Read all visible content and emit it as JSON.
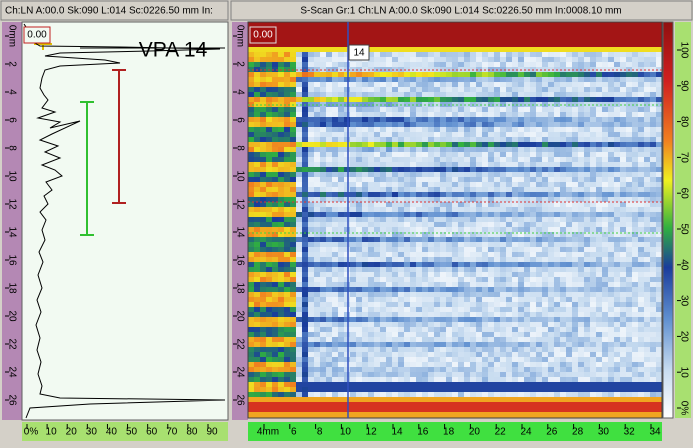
{
  "header": {
    "left": "Ch:LN A:00.0 Sk:090 L:014 Sc:0226.50 mm In:",
    "right": "S-Scan Gr:1 Ch:LN A:00.0 Sk:090 L:014 Sc:0226.50 mm In:0008.10 mm"
  },
  "ascan": {
    "gate_readout": "0.00",
    "label": "VPA 14",
    "depth_ruler": [
      "0mm",
      "2",
      "4",
      "6",
      "8",
      "10",
      "12",
      "14",
      "16",
      "18",
      "20",
      "22",
      "24",
      "26"
    ],
    "amplitude_ruler": [
      "0%",
      "10",
      "20",
      "30",
      "40",
      "50",
      "60",
      "70",
      "80",
      "90"
    ]
  },
  "sscan": {
    "gate_readout": "0.00",
    "cursor_label": "14",
    "depth_ruler": [
      "0mm",
      "2",
      "4",
      "6",
      "8",
      "10",
      "12",
      "14",
      "16",
      "18",
      "20",
      "22",
      "24",
      "26"
    ],
    "index_ruler": [
      "4mm",
      "6",
      "8",
      "10",
      "12",
      "14",
      "16",
      "18",
      "20",
      "22",
      "24",
      "26",
      "28",
      "30",
      "32",
      "34"
    ],
    "color_scale": [
      "100",
      "90",
      "80",
      "70",
      "60",
      "50",
      "40",
      "30",
      "20",
      "10",
      "0%"
    ]
  }
}
